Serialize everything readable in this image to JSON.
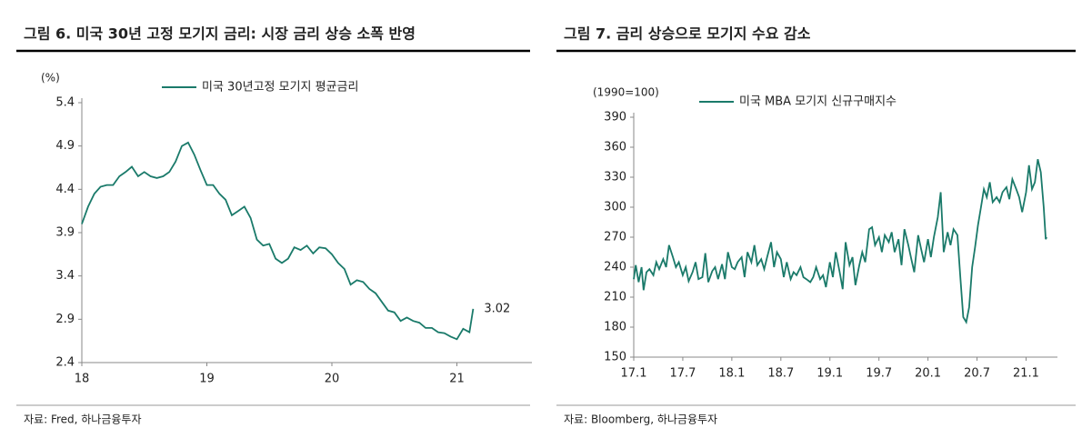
{
  "chart_data": [
    {
      "type": "line",
      "title": "그림 6. 미국 30년 고정 모기지 금리: 시장 금리 상승 소폭 반영",
      "ylabel": "(%)",
      "source": "자료: Fred, 하나금융투자",
      "x": [
        18.0,
        18.05,
        18.1,
        18.15,
        18.2,
        18.25,
        18.3,
        18.35,
        18.4,
        18.45,
        18.5,
        18.55,
        18.6,
        18.65,
        18.7,
        18.75,
        18.8,
        18.85,
        18.9,
        18.95,
        19.0,
        19.05,
        19.1,
        19.15,
        19.2,
        19.25,
        19.3,
        19.35,
        19.4,
        19.45,
        19.5,
        19.55,
        19.6,
        19.65,
        19.7,
        19.75,
        19.8,
        19.85,
        19.9,
        19.95,
        20.0,
        20.05,
        20.1,
        20.15,
        20.2,
        20.25,
        20.3,
        20.35,
        20.4,
        20.45,
        20.5,
        20.55,
        20.6,
        20.65,
        20.7,
        20.75,
        20.8,
        20.85,
        20.9,
        20.95,
        21.0,
        21.05,
        21.1,
        21.13
      ],
      "series": [
        {
          "name": "미국 30년고정 모기지 평균금리",
          "color": "#1a7a6a",
          "values": [
            4.0,
            4.2,
            4.35,
            4.43,
            4.45,
            4.45,
            4.55,
            4.6,
            4.66,
            4.55,
            4.6,
            4.55,
            4.53,
            4.55,
            4.6,
            4.72,
            4.9,
            4.94,
            4.8,
            4.62,
            4.45,
            4.45,
            4.35,
            4.28,
            4.1,
            4.15,
            4.2,
            4.07,
            3.82,
            3.75,
            3.77,
            3.6,
            3.55,
            3.6,
            3.73,
            3.7,
            3.75,
            3.66,
            3.73,
            3.72,
            3.65,
            3.55,
            3.48,
            3.3,
            3.35,
            3.33,
            3.25,
            3.2,
            3.1,
            3.0,
            2.98,
            2.88,
            2.92,
            2.88,
            2.86,
            2.8,
            2.8,
            2.75,
            2.74,
            2.7,
            2.67,
            2.79,
            2.75,
            3.02
          ]
        }
      ],
      "xlim": [
        18,
        21.6
      ],
      "xticks": [
        18,
        19,
        20,
        21
      ],
      "ylim": [
        2.4,
        5.4
      ],
      "yticks": [
        2.4,
        2.9,
        3.4,
        3.9,
        4.4,
        4.9,
        5.4
      ]
    },
    {
      "type": "line",
      "title": "그림 7. 금리 상승으로 모기지 수요 감소",
      "ylabel": "(1990=100)",
      "source": "자료: Bloomberg, 하나금융투자",
      "x": [
        17.0,
        17.02,
        17.05,
        17.08,
        17.1,
        17.13,
        17.16,
        17.2,
        17.23,
        17.26,
        17.3,
        17.33,
        17.36,
        17.4,
        17.43,
        17.46,
        17.5,
        17.53,
        17.56,
        17.6,
        17.63,
        17.66,
        17.7,
        17.73,
        17.76,
        17.8,
        17.83,
        17.86,
        17.9,
        17.93,
        17.96,
        18.0,
        18.03,
        18.06,
        18.1,
        18.13,
        18.16,
        18.2,
        18.23,
        18.26,
        18.3,
        18.33,
        18.36,
        18.4,
        18.43,
        18.46,
        18.5,
        18.53,
        18.56,
        18.6,
        18.63,
        18.66,
        18.7,
        18.73,
        18.76,
        18.8,
        18.83,
        18.86,
        18.9,
        18.93,
        18.96,
        19.0,
        19.03,
        19.06,
        19.1,
        19.13,
        19.16,
        19.2,
        19.23,
        19.26,
        19.3,
        19.33,
        19.36,
        19.4,
        19.43,
        19.46,
        19.5,
        19.53,
        19.56,
        19.6,
        19.63,
        19.66,
        19.7,
        19.73,
        19.76,
        19.8,
        19.83,
        19.86,
        19.9,
        19.93,
        19.96,
        20.0,
        20.03,
        20.06,
        20.1,
        20.13,
        20.16,
        20.2,
        20.23,
        20.26,
        20.3,
        20.33,
        20.36,
        20.39,
        20.42,
        20.45,
        20.48,
        20.51,
        20.54,
        20.57,
        20.6,
        20.63,
        20.66,
        20.7,
        20.73,
        20.76,
        20.8,
        20.83,
        20.86,
        20.9,
        20.93,
        20.96,
        21.0,
        21.03,
        21.06,
        21.09,
        21.12,
        21.15,
        21.18,
        21.2,
        21.21
      ],
      "series": [
        {
          "name": "미국 MBA 모기지 신규구매지수",
          "color": "#1a7a6a",
          "values": [
            228,
            242,
            225,
            240,
            217,
            235,
            238,
            232,
            245,
            238,
            248,
            240,
            262,
            250,
            240,
            245,
            232,
            240,
            226,
            235,
            245,
            228,
            230,
            254,
            225,
            236,
            240,
            228,
            243,
            228,
            255,
            240,
            238,
            245,
            250,
            230,
            255,
            245,
            262,
            242,
            248,
            238,
            250,
            265,
            240,
            255,
            248,
            230,
            245,
            228,
            235,
            232,
            240,
            230,
            228,
            225,
            230,
            240,
            228,
            232,
            220,
            245,
            230,
            255,
            235,
            218,
            265,
            242,
            250,
            222,
            242,
            255,
            245,
            278,
            280,
            262,
            270,
            255,
            272,
            265,
            275,
            255,
            268,
            242,
            278,
            262,
            248,
            235,
            272,
            258,
            245,
            268,
            250,
            270,
            290,
            315,
            255,
            275,
            262,
            278,
            272,
            230,
            190,
            185,
            200,
            240,
            260,
            282,
            300,
            318,
            310,
            325,
            305,
            310,
            305,
            315,
            320,
            308,
            328,
            318,
            310,
            295,
            315,
            342,
            318,
            325,
            348,
            335,
            300,
            268,
            270
          ]
        }
      ],
      "xlim": [
        17.0,
        21.32
      ],
      "xticks": [
        {
          "value": 17.0,
          "label": "17.1"
        },
        {
          "value": 17.5,
          "label": "17.7"
        },
        {
          "value": 18.0,
          "label": "18.1"
        },
        {
          "value": 18.5,
          "label": "18.7"
        },
        {
          "value": 19.0,
          "label": "19.1"
        },
        {
          "value": 19.5,
          "label": "19.7"
        },
        {
          "value": 20.0,
          "label": "20.1"
        },
        {
          "value": 20.5,
          "label": "20.7"
        },
        {
          "value": 21.0,
          "label": "21.1"
        }
      ],
      "ylim": [
        150,
        390
      ],
      "yticks": [
        150,
        180,
        210,
        240,
        270,
        300,
        330,
        360,
        390
      ]
    }
  ]
}
